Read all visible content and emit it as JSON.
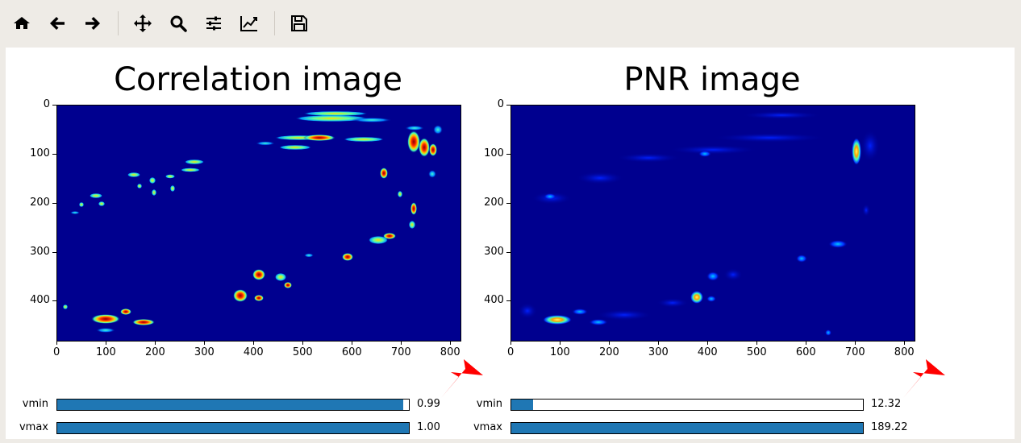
{
  "toolbar": {
    "buttons": [
      {
        "icon": "home-icon"
      },
      {
        "icon": "back-arrow-icon"
      },
      {
        "icon": "forward-arrow-icon"
      },
      {
        "icon": "pan-icon"
      },
      {
        "icon": "zoom-icon"
      },
      {
        "icon": "configure-subplots-icon"
      },
      {
        "icon": "edit-axis-icon"
      },
      {
        "icon": "save-icon"
      }
    ]
  },
  "panels": [
    {
      "title": "Correlation image",
      "x_ticks": [
        "0",
        "100",
        "200",
        "300",
        "400",
        "500",
        "600",
        "700",
        "800"
      ],
      "y_ticks": [
        "0",
        "100",
        "200",
        "300",
        "400"
      ],
      "sliders": [
        {
          "label": "vmin",
          "value_text": "0.99",
          "fraction": 0.985
        },
        {
          "label": "vmax",
          "value_text": "1.00",
          "fraction": 1.0
        }
      ]
    },
    {
      "title": "PNR image",
      "x_ticks": [
        "0",
        "100",
        "200",
        "300",
        "400",
        "500",
        "600",
        "700",
        "800"
      ],
      "y_ticks": [
        "0",
        "100",
        "200",
        "300",
        "400"
      ],
      "sliders": [
        {
          "label": "vmin",
          "value_text": "12.32",
          "fraction": 0.062
        },
        {
          "label": "vmax",
          "value_text": "189.22",
          "fraction": 1.0
        }
      ]
    }
  ],
  "colors": {
    "slider_fill": "#1f77b4",
    "heatmap_background": "#00008f",
    "annotation_arrow": "#ff0000"
  }
}
